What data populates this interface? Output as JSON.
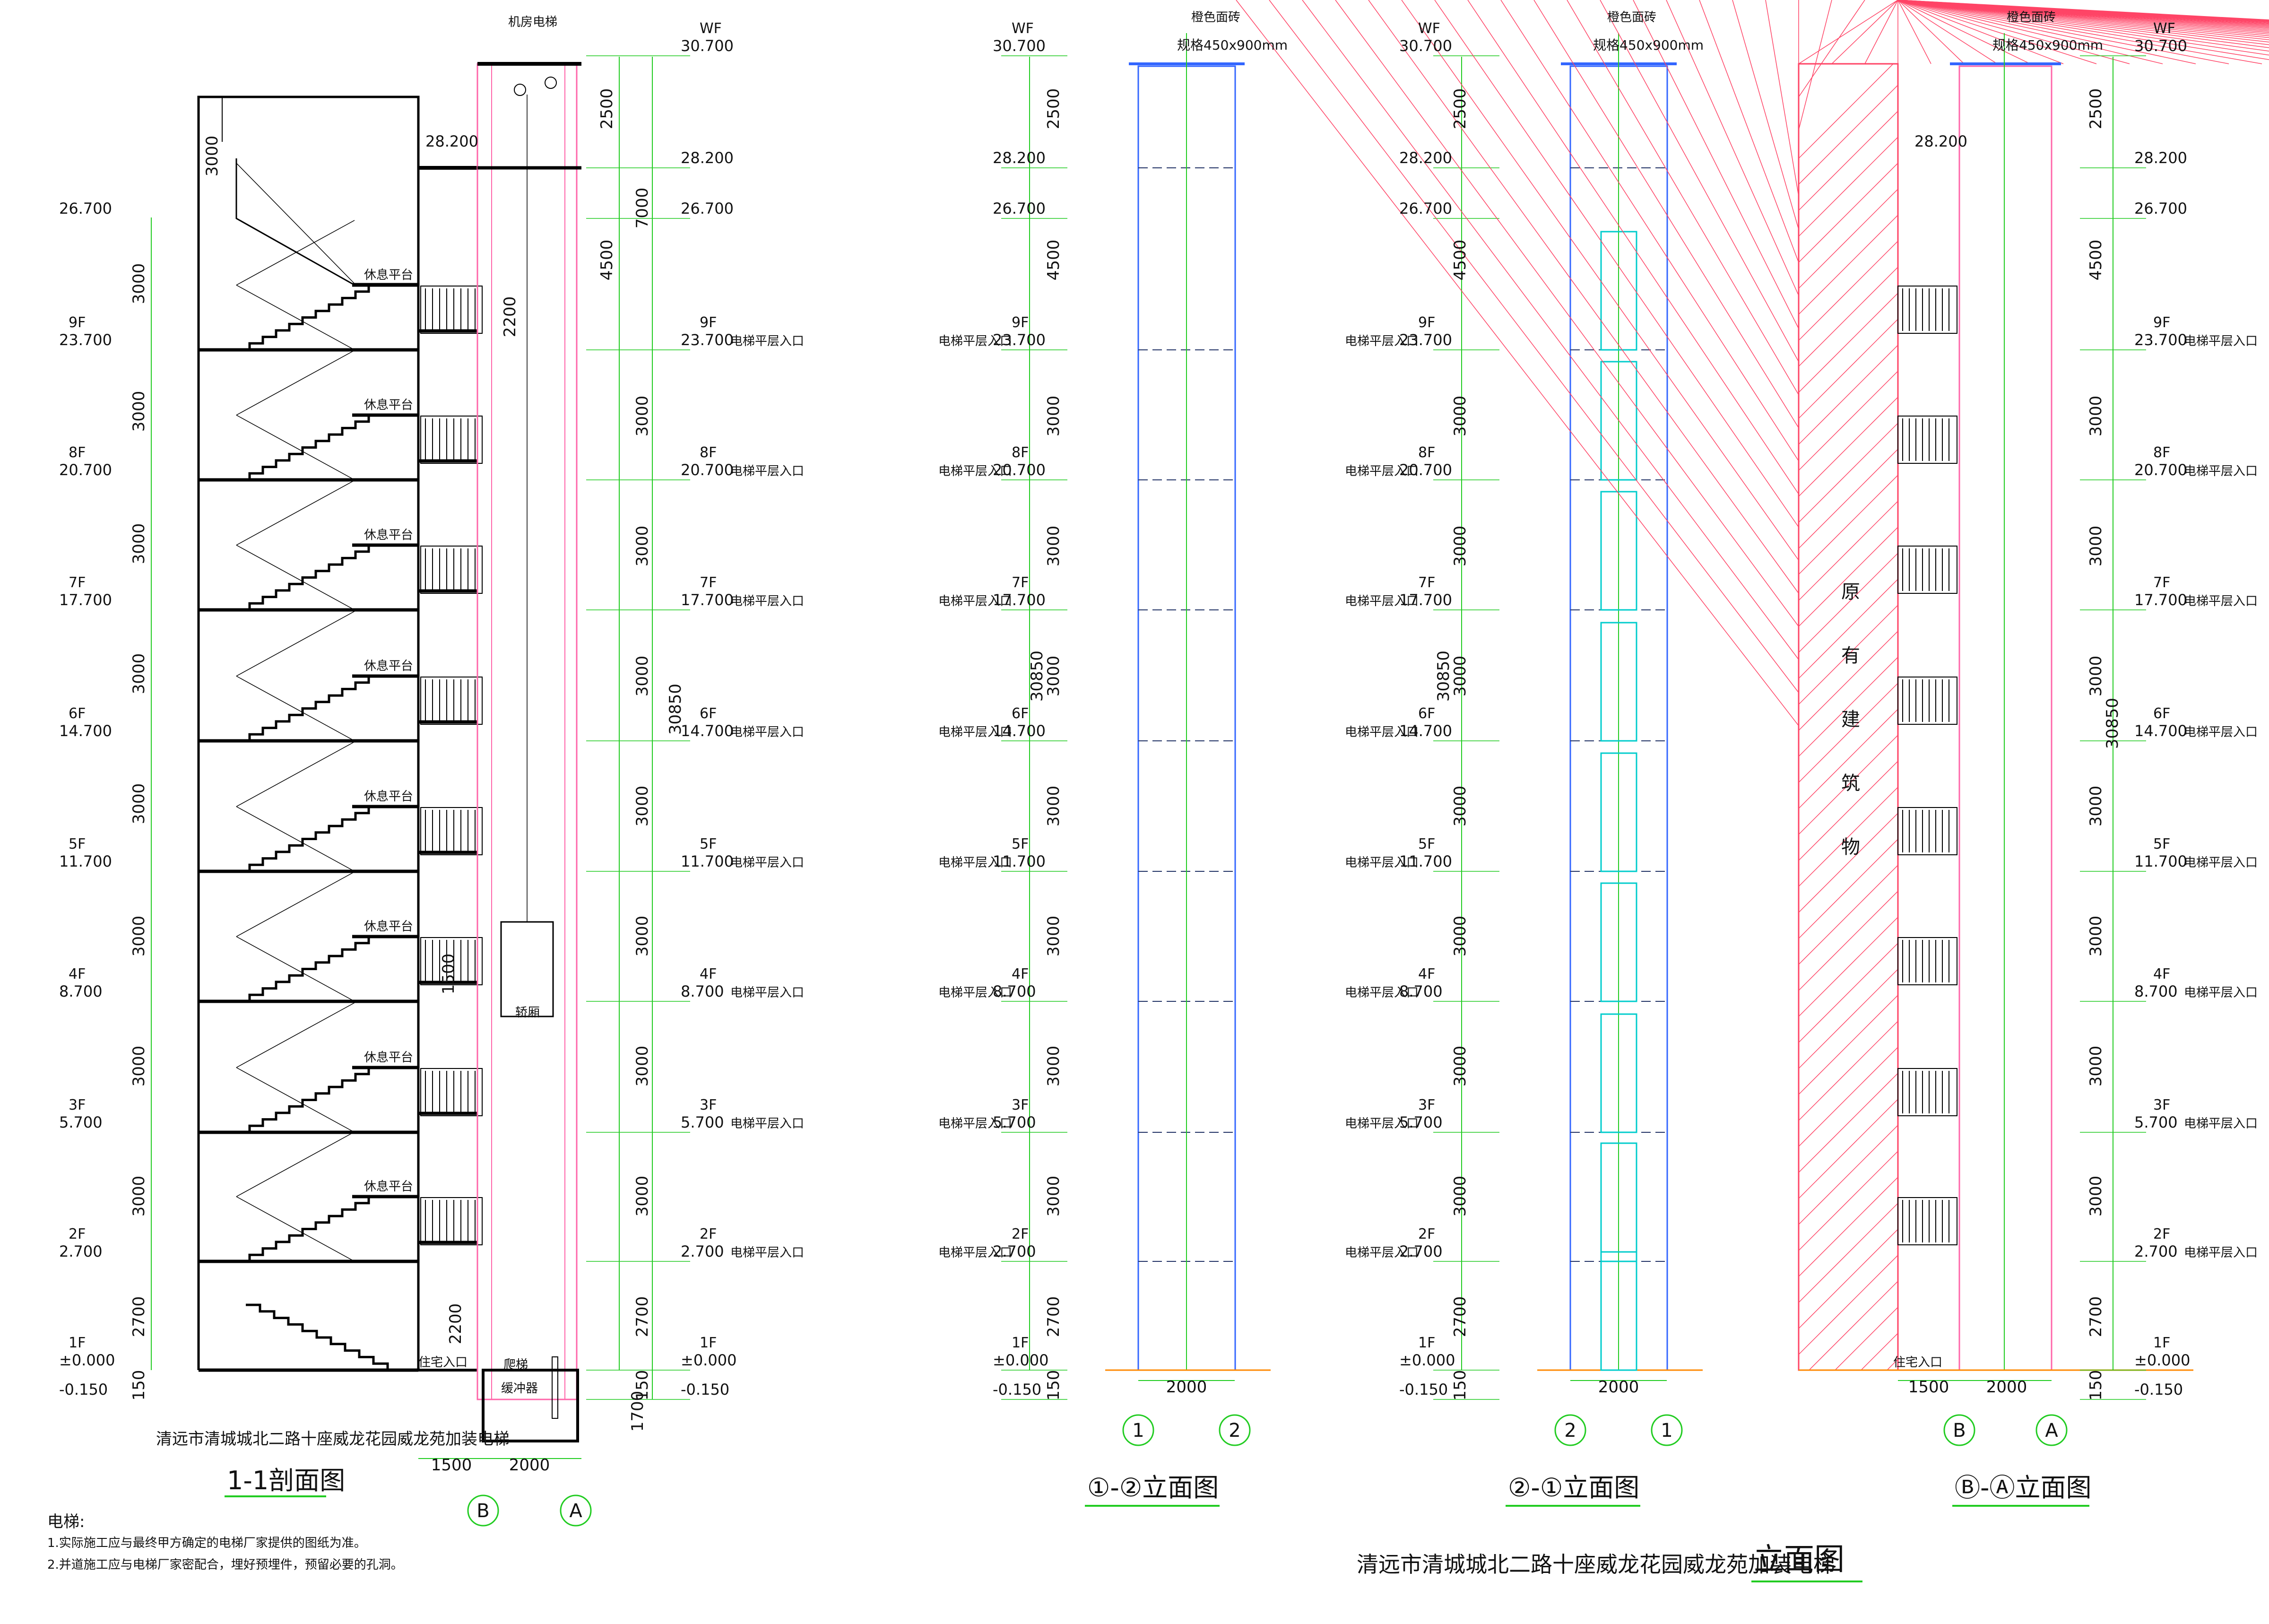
{
  "colors": {
    "structure": "#000000",
    "dimension": "#22cc22",
    "shaft": "#ff66aa",
    "elevation": "#3366ff",
    "ground": "#ff8800",
    "door": "#00cccc",
    "hatch": "#ff4466"
  },
  "levels": [
    {
      "floor": "WF",
      "elev": "30.700"
    },
    {
      "floor": "",
      "elev": "28.200"
    },
    {
      "floor": "",
      "elev": "26.700"
    },
    {
      "floor": "9F",
      "elev": "23.700"
    },
    {
      "floor": "8F",
      "elev": "20.700"
    },
    {
      "floor": "7F",
      "elev": "17.700"
    },
    {
      "floor": "6F",
      "elev": "14.700"
    },
    {
      "floor": "5F",
      "elev": "11.700"
    },
    {
      "floor": "4F",
      "elev": "8.700"
    },
    {
      "floor": "3F",
      "elev": "5.700"
    },
    {
      "floor": "2F",
      "elev": "2.700"
    },
    {
      "floor": "1F",
      "elev": "±0.000"
    },
    {
      "floor": "",
      "elev": "-0.150"
    }
  ],
  "dims": {
    "floor_height": "3000",
    "ground_floor": "2700",
    "base": "150",
    "top": "2500",
    "machine_room": "7000",
    "upper": "4500",
    "total": "30850",
    "door_h": "2200",
    "pit": "1700",
    "rail": "1500",
    "shaft_w": "2000",
    "corridor_w": "1500",
    "stair_top": "3000"
  },
  "labels": {
    "machine_room": "机房电梯",
    "landing": "休息平台",
    "elevator_entry": "电梯平层入口",
    "residence_entry": "住宅入口",
    "car": "轿厢",
    "ladder": "爬梯",
    "buffer": "缓冲器",
    "tile": "橙色面砖",
    "tile_spec": "规格450x900mm",
    "existing_building": [
      "原",
      "有",
      "建",
      "筑",
      "物"
    ]
  },
  "views": [
    {
      "title": "1-1剖面图",
      "subtitle": "清远市清城城北二路十座威龙花园威龙苑加装电梯",
      "axes": [
        "B",
        "A"
      ]
    },
    {
      "title": "①-②立面图",
      "axes": [
        "1",
        "2"
      ]
    },
    {
      "title": "②-①立面图",
      "axes": [
        "2",
        "1"
      ]
    },
    {
      "title": "Ⓑ-Ⓐ立面图",
      "axes": [
        "B",
        "A"
      ]
    }
  ],
  "notes": {
    "heading": "电梯:",
    "items": [
      "1.实际施工应与最终甲方确定的电梯厂家提供的图纸为准。",
      "2.并道施工应与电梯厂家密配合，埋好预埋件，预留必要的孔洞。"
    ]
  },
  "main_title": {
    "prefix": "清远市清城城北二路十座威龙花园威龙苑加装电梯",
    "suffix": "立面图"
  }
}
